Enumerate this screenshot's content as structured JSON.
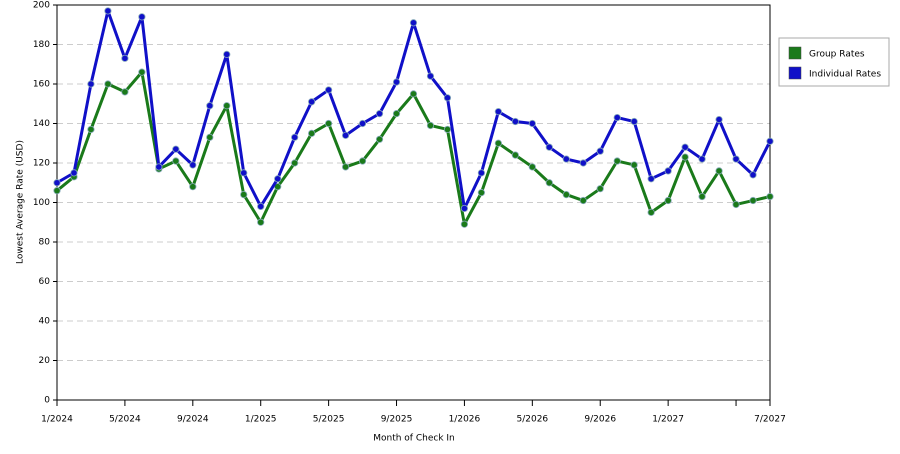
{
  "chart_data": {
    "type": "line",
    "x_label": "Month of Check In",
    "y_label": "Lowest Average Rate (USD)",
    "categories": [
      "1/2024",
      null,
      null,
      null,
      "5/2024",
      null,
      null,
      null,
      "9/2024",
      null,
      null,
      null,
      "1/2025",
      null,
      null,
      null,
      "5/2025",
      null,
      null,
      null,
      "9/2025",
      null,
      null,
      null,
      "1/2026",
      null,
      null,
      null,
      "5/2026",
      null,
      null,
      null,
      "9/2026",
      null,
      null,
      null,
      "1/2027",
      null,
      null,
      null,
      null,
      null,
      "7/2027"
    ],
    "series": [
      {
        "name": "Group Rates",
        "color": "#1a7a1a",
        "values": [
          106,
          113,
          137,
          160,
          156,
          166,
          117,
          121,
          108,
          133,
          149,
          104,
          90,
          108,
          120,
          135,
          140,
          118,
          121,
          132,
          145,
          155,
          139,
          137,
          89,
          105,
          130,
          124,
          118,
          110,
          104,
          101,
          107,
          121,
          119,
          95,
          101,
          123,
          103,
          116,
          99,
          101,
          103
        ]
      },
      {
        "name": "Individual Rates",
        "color": "#1010c8",
        "values": [
          110,
          115,
          160,
          197,
          173,
          194,
          118,
          127,
          119,
          149,
          175,
          115,
          98,
          112,
          133,
          151,
          157,
          134,
          140,
          145,
          161,
          191,
          164,
          153,
          97,
          115,
          146,
          141,
          140,
          128,
          122,
          120,
          126,
          143,
          141,
          112,
          116,
          128,
          122,
          142,
          122,
          114,
          131
        ]
      }
    ],
    "ylim": [
      0,
      200
    ],
    "yticks": [
      0,
      20,
      40,
      60,
      80,
      100,
      120,
      140,
      160,
      180,
      200
    ],
    "grid": true,
    "legend": "right"
  }
}
